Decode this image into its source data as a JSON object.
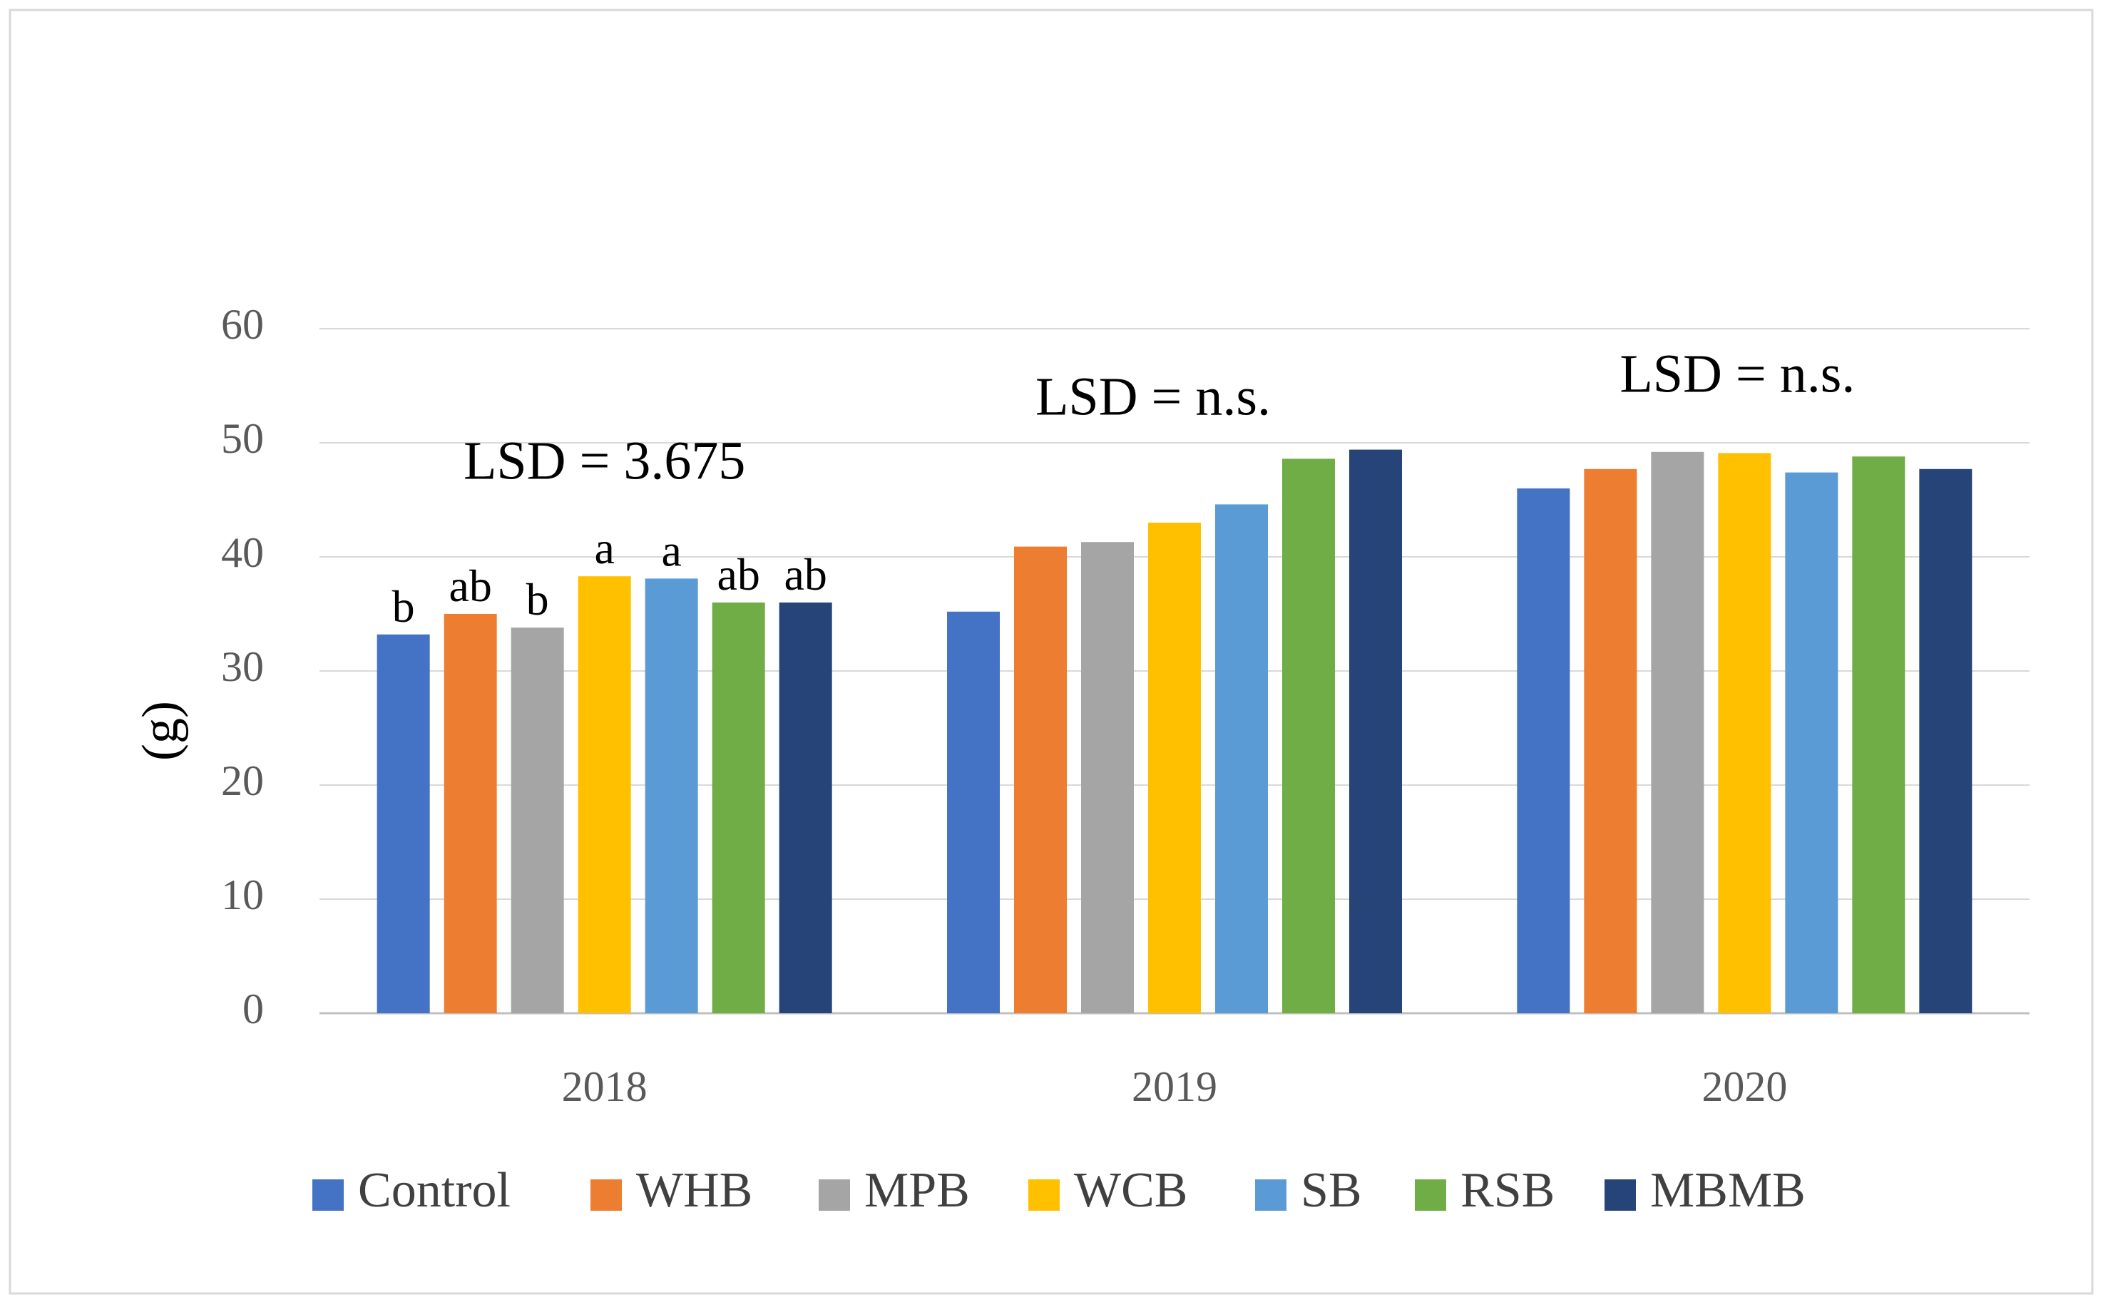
{
  "chart_data": {
    "type": "bar",
    "title": "",
    "xlabel": "",
    "ylabel": "(g)",
    "ylim": [
      0,
      60
    ],
    "yticks": [
      0,
      10,
      20,
      30,
      40,
      50,
      60
    ],
    "grid": true,
    "categories": [
      "2018",
      "2019",
      "2020"
    ],
    "series": [
      {
        "name": "Control",
        "color": "#4472C4",
        "values": [
          33.2,
          35.2,
          46.0
        ]
      },
      {
        "name": "WHB",
        "color": "#ED7D31",
        "values": [
          35.0,
          40.9,
          47.7
        ]
      },
      {
        "name": "MPB",
        "color": "#A5A5A5",
        "values": [
          33.8,
          41.3,
          49.2
        ]
      },
      {
        "name": "WCB",
        "color": "#FFC000",
        "values": [
          38.3,
          43.0,
          49.1
        ]
      },
      {
        "name": "SB",
        "color": "#5B9BD5",
        "values": [
          38.1,
          44.6,
          47.4
        ]
      },
      {
        "name": "RSB",
        "color": "#70AD47",
        "values": [
          36.0,
          48.6,
          48.8
        ]
      },
      {
        "name": "MBMB",
        "color": "#264478",
        "values": [
          36.0,
          49.4,
          47.7
        ]
      }
    ],
    "significance_letters": [
      [
        "b",
        "ab",
        "b",
        "a",
        "a",
        "ab",
        "ab"
      ],
      null,
      null
    ],
    "annotations": [
      {
        "text": "LSD = 3.675",
        "category": "2018"
      },
      {
        "text": "LSD = n.s.",
        "category": "2019"
      },
      {
        "text": "LSD = n.s.",
        "category": "2020"
      }
    ],
    "legend_position": "bottom"
  }
}
